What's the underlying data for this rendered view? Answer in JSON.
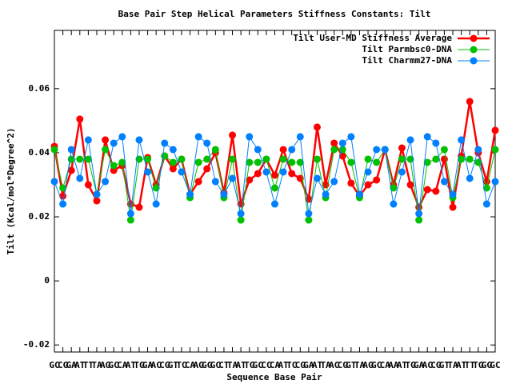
{
  "chart_data": {
    "type": "line",
    "title": "Base Pair Step Helical Parameters Stiffness Constants: Tilt",
    "x_label": "Sequence Base Pair",
    "y_label": "Tilt (Kcal/mol*Degree^2)",
    "categories": [
      "GC",
      "CG",
      "GA",
      "AT",
      "TT",
      "TA",
      "AG",
      "GC",
      "CA",
      "AT",
      "TG",
      "GA",
      "AC",
      "CG",
      "GT",
      "TC",
      "CA",
      "AG",
      "GG",
      "GC",
      "CT",
      "TA",
      "AT",
      "TG",
      "GC",
      "CC",
      "CA",
      "AT",
      "TC",
      "CG",
      "GA",
      "AT",
      "TA",
      "AC",
      "CG",
      "GT",
      "TA",
      "AG",
      "GC",
      "CA",
      "AA",
      "AT",
      "TG",
      "GA",
      "AC",
      "CG",
      "GT",
      "TA",
      "AT",
      "TT",
      "TG",
      "GG",
      "GC"
    ],
    "series": [
      {
        "name": "Tilt User-MD Stiffness Average",
        "color": "#ff0000",
        "values": [
          0.042,
          0.0265,
          0.0345,
          0.0505,
          0.03,
          0.025,
          0.044,
          0.0345,
          0.036,
          0.024,
          0.023,
          0.0385,
          0.03,
          0.039,
          0.035,
          0.038,
          0.027,
          0.031,
          0.035,
          0.04,
          0.0275,
          0.0455,
          0.024,
          0.0315,
          0.0335,
          0.038,
          0.033,
          0.041,
          0.0335,
          0.032,
          0.0255,
          0.048,
          0.03,
          0.043,
          0.039,
          0.0305,
          0.0265,
          0.03,
          0.0315,
          0.041,
          0.03,
          0.0415,
          0.03,
          0.023,
          0.0285,
          0.028,
          0.038,
          0.023,
          0.039,
          0.056,
          0.04,
          0.031,
          0.047
        ]
      },
      {
        "name": "Tilt Parmbsc0-DNA",
        "color": "#00c000",
        "values": [
          0.041,
          0.029,
          0.038,
          0.038,
          0.038,
          0.027,
          0.041,
          0.036,
          0.037,
          0.019,
          0.038,
          0.038,
          0.029,
          0.039,
          0.037,
          0.038,
          0.026,
          0.037,
          0.038,
          0.041,
          0.026,
          0.038,
          0.019,
          0.037,
          0.037,
          0.038,
          0.029,
          0.038,
          0.037,
          0.037,
          0.019,
          0.038,
          0.026,
          0.041,
          0.041,
          0.037,
          0.026,
          0.038,
          0.037,
          0.041,
          0.029,
          0.038,
          0.038,
          0.019,
          0.037,
          0.038,
          0.041,
          0.026,
          0.038,
          0.038,
          0.037,
          0.029,
          0.041
        ]
      },
      {
        "name": "Tilt Charmm27-DNA",
        "color": "#0080ff",
        "values": [
          0.031,
          0.024,
          0.041,
          0.032,
          0.044,
          0.027,
          0.031,
          0.043,
          0.045,
          0.021,
          0.044,
          0.034,
          0.024,
          0.043,
          0.041,
          0.034,
          0.027,
          0.045,
          0.043,
          0.031,
          0.027,
          0.032,
          0.021,
          0.045,
          0.041,
          0.034,
          0.024,
          0.034,
          0.041,
          0.045,
          0.021,
          0.032,
          0.027,
          0.031,
          0.043,
          0.045,
          0.027,
          0.034,
          0.041,
          0.041,
          0.024,
          0.034,
          0.044,
          0.021,
          0.045,
          0.043,
          0.031,
          0.027,
          0.044,
          0.032,
          0.041,
          0.024,
          0.031
        ]
      }
    ],
    "ylim": [
      -0.0222,
      0.0782
    ],
    "yticks": [
      -0.02,
      0,
      0.02,
      0.04,
      0.06
    ],
    "legend": "top-right"
  }
}
